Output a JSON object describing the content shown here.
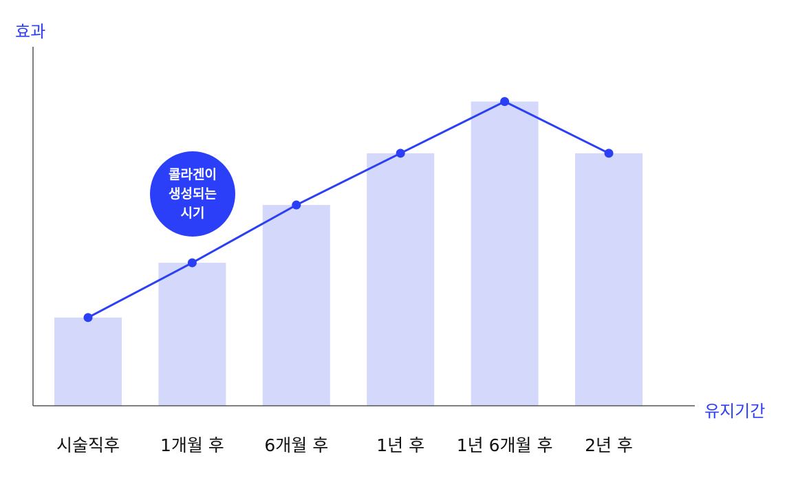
{
  "chart_data": {
    "type": "bar",
    "title": "",
    "ylabel": "효과",
    "xlabel": "유지기간",
    "categories": [
      "시술직후",
      "1개월 후",
      "6개월 후",
      "1년 후",
      "1년 6개월 후",
      "2년 후"
    ],
    "values": [
      29,
      47,
      66,
      83,
      100,
      83
    ],
    "line_overlay": true,
    "ylim": [
      0,
      118
    ],
    "grid": false,
    "annotation": [
      "콜라겐이",
      "생성되는",
      "시기"
    ],
    "colors": {
      "bar": "#d4d8fb",
      "line": "#2b3ff5",
      "axis": "#555555",
      "badge": "#2b3ff8"
    }
  }
}
